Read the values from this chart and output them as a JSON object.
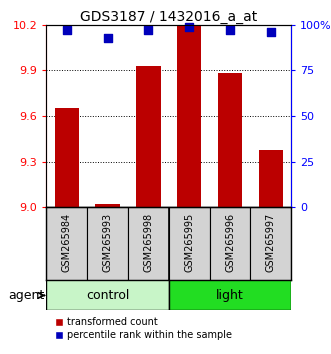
{
  "title": "GDS3187 / 1432016_a_at",
  "samples": [
    "GSM265984",
    "GSM265993",
    "GSM265998",
    "GSM265995",
    "GSM265996",
    "GSM265997"
  ],
  "transformed_counts": [
    9.65,
    9.02,
    9.93,
    10.19,
    9.88,
    9.38
  ],
  "percentile_ranks": [
    97,
    93,
    97,
    99,
    97,
    96
  ],
  "left_ylim": [
    9.0,
    10.2
  ],
  "left_yticks": [
    9.0,
    9.3,
    9.6,
    9.9,
    10.2
  ],
  "right_ylim": [
    0,
    100
  ],
  "right_yticks": [
    0,
    25,
    50,
    75,
    100
  ],
  "right_yticklabels": [
    "0",
    "25",
    "50",
    "75",
    "100%"
  ],
  "bar_color": "#bb0000",
  "dot_color": "#0000bb",
  "control_color": "#c8f5c8",
  "light_color": "#22dd22",
  "legend_bar_label": "transformed count",
  "legend_dot_label": "percentile rank within the sample",
  "agent_label": "agent",
  "bar_width": 0.6,
  "dot_size": 40,
  "title_fontsize": 10,
  "tick_fontsize": 8,
  "sample_fontsize": 7,
  "group_fontsize": 9
}
